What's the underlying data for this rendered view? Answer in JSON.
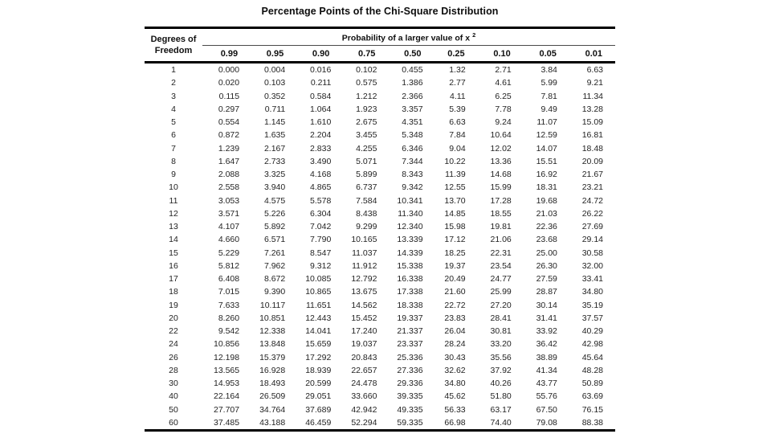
{
  "title": "Percentage Points of the Chi-Square Distribution",
  "table": {
    "df_header": [
      "Degrees of",
      "Freedom"
    ],
    "prob_header": "Probability of a larger value of x",
    "prob_sup": "2",
    "columns": [
      "0.99",
      "0.95",
      "0.90",
      "0.75",
      "0.50",
      "0.25",
      "0.10",
      "0.05",
      "0.01"
    ],
    "rows": [
      [
        "1",
        "0.000",
        "0.004",
        "0.016",
        "0.102",
        "0.455",
        "1.32",
        "2.71",
        "3.84",
        "6.63"
      ],
      [
        "2",
        "0.020",
        "0.103",
        "0.211",
        "0.575",
        "1.386",
        "2.77",
        "4.61",
        "5.99",
        "9.21"
      ],
      [
        "3",
        "0.115",
        "0.352",
        "0.584",
        "1.212",
        "2.366",
        "4.11",
        "6.25",
        "7.81",
        "11.34"
      ],
      [
        "4",
        "0.297",
        "0.711",
        "1.064",
        "1.923",
        "3.357",
        "5.39",
        "7.78",
        "9.49",
        "13.28"
      ],
      [
        "5",
        "0.554",
        "1.145",
        "1.610",
        "2.675",
        "4.351",
        "6.63",
        "9.24",
        "11.07",
        "15.09"
      ],
      [
        "6",
        "0.872",
        "1.635",
        "2.204",
        "3.455",
        "5.348",
        "7.84",
        "10.64",
        "12.59",
        "16.81"
      ],
      [
        "7",
        "1.239",
        "2.167",
        "2.833",
        "4.255",
        "6.346",
        "9.04",
        "12.02",
        "14.07",
        "18.48"
      ],
      [
        "8",
        "1.647",
        "2.733",
        "3.490",
        "5.071",
        "7.344",
        "10.22",
        "13.36",
        "15.51",
        "20.09"
      ],
      [
        "9",
        "2.088",
        "3.325",
        "4.168",
        "5.899",
        "8.343",
        "11.39",
        "14.68",
        "16.92",
        "21.67"
      ],
      [
        "10",
        "2.558",
        "3.940",
        "4.865",
        "6.737",
        "9.342",
        "12.55",
        "15.99",
        "18.31",
        "23.21"
      ],
      [
        "11",
        "3.053",
        "4.575",
        "5.578",
        "7.584",
        "10.341",
        "13.70",
        "17.28",
        "19.68",
        "24.72"
      ],
      [
        "12",
        "3.571",
        "5.226",
        "6.304",
        "8.438",
        "11.340",
        "14.85",
        "18.55",
        "21.03",
        "26.22"
      ],
      [
        "13",
        "4.107",
        "5.892",
        "7.042",
        "9.299",
        "12.340",
        "15.98",
        "19.81",
        "22.36",
        "27.69"
      ],
      [
        "14",
        "4.660",
        "6.571",
        "7.790",
        "10.165",
        "13.339",
        "17.12",
        "21.06",
        "23.68",
        "29.14"
      ],
      [
        "15",
        "5.229",
        "7.261",
        "8.547",
        "11.037",
        "14.339",
        "18.25",
        "22.31",
        "25.00",
        "30.58"
      ],
      [
        "16",
        "5.812",
        "7.962",
        "9.312",
        "11.912",
        "15.338",
        "19.37",
        "23.54",
        "26.30",
        "32.00"
      ],
      [
        "17",
        "6.408",
        "8.672",
        "10.085",
        "12.792",
        "16.338",
        "20.49",
        "24.77",
        "27.59",
        "33.41"
      ],
      [
        "18",
        "7.015",
        "9.390",
        "10.865",
        "13.675",
        "17.338",
        "21.60",
        "25.99",
        "28.87",
        "34.80"
      ],
      [
        "19",
        "7.633",
        "10.117",
        "11.651",
        "14.562",
        "18.338",
        "22.72",
        "27.20",
        "30.14",
        "35.19"
      ],
      [
        "20",
        "8.260",
        "10.851",
        "12.443",
        "15.452",
        "19.337",
        "23.83",
        "28.41",
        "31.41",
        "37.57"
      ],
      [
        "22",
        "9.542",
        "12.338",
        "14.041",
        "17.240",
        "21.337",
        "26.04",
        "30.81",
        "33.92",
        "40.29"
      ],
      [
        "24",
        "10.856",
        "13.848",
        "15.659",
        "19.037",
        "23.337",
        "28.24",
        "33.20",
        "36.42",
        "42.98"
      ],
      [
        "26",
        "12.198",
        "15.379",
        "17.292",
        "20.843",
        "25.336",
        "30.43",
        "35.56",
        "38.89",
        "45.64"
      ],
      [
        "28",
        "13.565",
        "16.928",
        "18.939",
        "22.657",
        "27.336",
        "32.62",
        "37.92",
        "41.34",
        "48.28"
      ],
      [
        "30",
        "14.953",
        "18.493",
        "20.599",
        "24.478",
        "29.336",
        "34.80",
        "40.26",
        "43.77",
        "50.89"
      ],
      [
        "40",
        "22.164",
        "26.509",
        "29.051",
        "33.660",
        "39.335",
        "45.62",
        "51.80",
        "55.76",
        "63.69"
      ],
      [
        "50",
        "27.707",
        "34.764",
        "37.689",
        "42.942",
        "49.335",
        "56.33",
        "63.17",
        "67.50",
        "76.15"
      ],
      [
        "60",
        "37.485",
        "43.188",
        "46.459",
        "52.294",
        "59.335",
        "66.98",
        "74.40",
        "79.08",
        "88.38"
      ]
    ]
  }
}
